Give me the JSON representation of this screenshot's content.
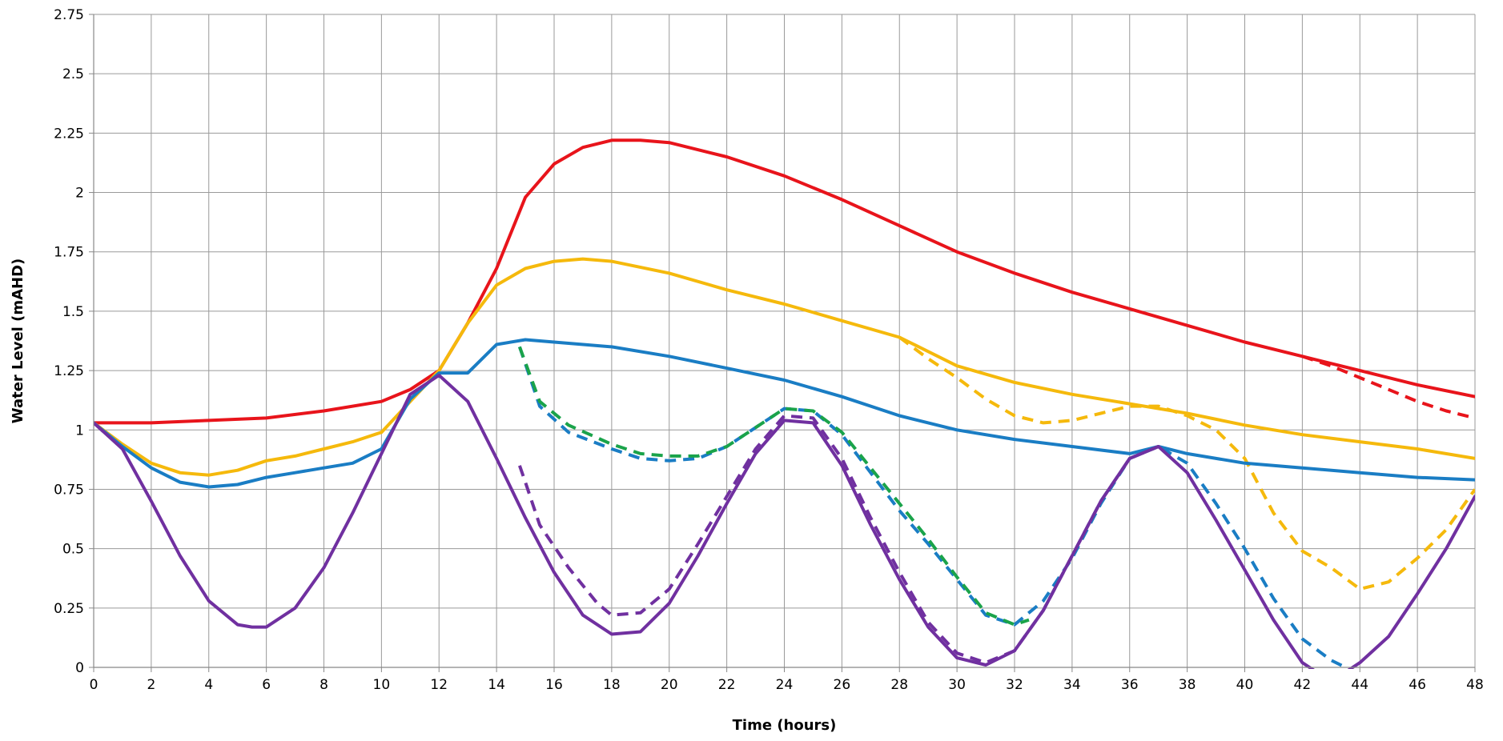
{
  "chart_data": {
    "type": "line",
    "title": "",
    "xlabel": "Time (hours)",
    "ylabel": "Water Level (mAHD)",
    "xlim": [
      0,
      48
    ],
    "ylim": [
      0,
      2.75
    ],
    "xticks": [
      0,
      2,
      4,
      6,
      8,
      10,
      12,
      14,
      16,
      18,
      20,
      22,
      24,
      26,
      28,
      30,
      32,
      34,
      36,
      38,
      40,
      42,
      44,
      46,
      48
    ],
    "xtick_labels": [
      "0",
      "2",
      "4",
      "6",
      "8",
      "10",
      "12",
      "14",
      "16",
      "18",
      "20",
      "22",
      "24",
      "26",
      "28",
      "30",
      "32",
      "34",
      "36",
      "38",
      "40",
      "42",
      "44",
      "46",
      "48"
    ],
    "yticks": [
      0,
      0.25,
      0.5,
      0.75,
      1,
      1.25,
      1.5,
      1.75,
      2,
      2.25,
      2.5,
      2.75
    ],
    "ytick_labels": [
      "0",
      "0.25",
      "0.5",
      "0.75",
      "1",
      "1.25",
      "1.5",
      "1.75",
      "2",
      "2.25",
      "2.5",
      "2.75"
    ],
    "grid": true,
    "legend": "none",
    "series": [
      {
        "color": "#e8141b",
        "dash": "solid",
        "x": [
          0,
          2,
          4,
          6,
          8,
          10,
          11,
          12,
          13,
          14,
          15,
          16,
          17,
          18,
          19,
          20,
          22,
          24,
          26,
          28,
          30,
          32,
          34,
          36,
          38,
          40,
          42,
          44,
          46,
          48
        ],
        "y": [
          1.03,
          1.03,
          1.04,
          1.05,
          1.08,
          1.12,
          1.17,
          1.25,
          1.45,
          1.68,
          1.98,
          2.12,
          2.19,
          2.22,
          2.22,
          2.21,
          2.15,
          2.07,
          1.97,
          1.86,
          1.75,
          1.66,
          1.58,
          1.51,
          1.44,
          1.37,
          1.31,
          1.25,
          1.19,
          1.14
        ]
      },
      {
        "color": "#e8141b",
        "dash": "dashed",
        "x": [
          42,
          43,
          44,
          45,
          46,
          47,
          48
        ],
        "y": [
          1.31,
          1.27,
          1.22,
          1.17,
          1.12,
          1.08,
          1.05
        ]
      },
      {
        "color": "#f5b90c",
        "dash": "solid",
        "x": [
          0,
          1,
          2,
          3,
          4,
          5,
          6,
          7,
          8,
          9,
          10,
          11,
          12,
          13,
          14,
          15,
          16,
          17,
          18,
          20,
          22,
          24,
          26,
          28,
          30,
          32,
          34,
          36,
          38,
          40,
          42,
          44,
          46,
          48
        ],
        "y": [
          1.03,
          0.94,
          0.86,
          0.82,
          0.81,
          0.83,
          0.87,
          0.89,
          0.92,
          0.95,
          0.99,
          1.12,
          1.25,
          1.45,
          1.61,
          1.68,
          1.71,
          1.72,
          1.71,
          1.66,
          1.59,
          1.53,
          1.46,
          1.39,
          1.27,
          1.2,
          1.15,
          1.11,
          1.07,
          1.02,
          0.98,
          0.95,
          0.92,
          0.88
        ]
      },
      {
        "color": "#f5b90c",
        "dash": "dashed",
        "x": [
          28,
          29,
          30,
          31,
          32,
          33,
          34,
          35,
          36,
          37,
          38,
          39,
          40,
          41,
          42,
          43,
          44,
          45,
          46,
          47,
          48
        ],
        "y": [
          1.39,
          1.3,
          1.22,
          1.13,
          1.06,
          1.03,
          1.04,
          1.07,
          1.1,
          1.1,
          1.06,
          1.0,
          0.88,
          0.65,
          0.49,
          0.42,
          0.33,
          0.36,
          0.46,
          0.58,
          0.75
        ]
      },
      {
        "color": "#1a7dc4",
        "dash": "solid",
        "x": [
          0,
          1,
          2,
          3,
          4,
          5,
          6,
          7,
          8,
          9,
          10,
          11,
          12,
          13,
          14,
          15,
          16,
          18,
          20,
          22,
          24,
          26,
          28,
          30,
          32,
          34,
          36,
          37,
          38,
          40,
          42,
          44,
          46,
          48
        ],
        "y": [
          1.03,
          0.93,
          0.84,
          0.78,
          0.76,
          0.77,
          0.8,
          0.82,
          0.84,
          0.86,
          0.92,
          1.13,
          1.24,
          1.24,
          1.36,
          1.38,
          1.37,
          1.35,
          1.31,
          1.26,
          1.21,
          1.14,
          1.06,
          1.0,
          0.96,
          0.93,
          0.9,
          0.93,
          0.9,
          0.86,
          0.84,
          0.82,
          0.8,
          0.79
        ]
      },
      {
        "color": "#1a7dc4",
        "dash": "dashed",
        "x": [
          14.8,
          15.5,
          16.5,
          18,
          19,
          20,
          21,
          22,
          23,
          24,
          25,
          26,
          27,
          28,
          29,
          30,
          31,
          32,
          33,
          34,
          35,
          36,
          37,
          38,
          39,
          40,
          41,
          42,
          43,
          43.5
        ],
        "y": [
          1.35,
          1.1,
          0.99,
          0.92,
          0.88,
          0.87,
          0.88,
          0.93,
          1.01,
          1.09,
          1.08,
          0.98,
          0.82,
          0.66,
          0.52,
          0.37,
          0.22,
          0.18,
          0.28,
          0.46,
          0.69,
          0.88,
          0.93,
          0.86,
          0.69,
          0.5,
          0.29,
          0.12,
          0.03,
          0
        ]
      },
      {
        "color": "#1aa34a",
        "dash": "dashed",
        "x": [
          14.8,
          15.5,
          16.5,
          18,
          19,
          20,
          21,
          22,
          23,
          24,
          25,
          26,
          27,
          28,
          29,
          30,
          31,
          32,
          32.5
        ],
        "y": [
          1.35,
          1.12,
          1.02,
          0.94,
          0.9,
          0.89,
          0.89,
          0.93,
          1.01,
          1.09,
          1.08,
          0.99,
          0.84,
          0.69,
          0.54,
          0.38,
          0.23,
          0.18,
          0.2
        ]
      },
      {
        "color": "#7030a0",
        "dash": "solid",
        "x": [
          0,
          1,
          2,
          3,
          4,
          5,
          5.5,
          6,
          7,
          8,
          9,
          10,
          11,
          12,
          13,
          14,
          15,
          16,
          17,
          18,
          19,
          20,
          21,
          22,
          23,
          24,
          25,
          26,
          27,
          28,
          29,
          30,
          31,
          32,
          33,
          34,
          35,
          36,
          37,
          38,
          39,
          40,
          41,
          42,
          43,
          44,
          45,
          46,
          47,
          48
        ],
        "y": [
          1.03,
          0.92,
          0.7,
          0.47,
          0.28,
          0.18,
          0.17,
          0.17,
          0.25,
          0.42,
          0.65,
          0.9,
          1.15,
          1.23,
          1.12,
          0.88,
          0.63,
          0.4,
          0.22,
          0.14,
          0.15,
          0.27,
          0.47,
          0.69,
          0.9,
          1.04,
          1.03,
          0.85,
          0.6,
          0.37,
          0.17,
          0.04,
          0.01,
          0.07,
          0.24,
          0.47,
          0.7,
          0.88,
          0.93,
          0.82,
          0.62,
          0.41,
          0.2,
          0.02,
          -0.06,
          0.02,
          0.13,
          0.31,
          0.5,
          0.72
        ]
      },
      {
        "color": "#7030a0",
        "dash": "dashed",
        "x": [
          14.8,
          15,
          15.5,
          16.5,
          17.5,
          18,
          19,
          20,
          21,
          22,
          23,
          24,
          25,
          26,
          27,
          28,
          29,
          30,
          31,
          32,
          33,
          34,
          35,
          36,
          37
        ],
        "y": [
          0.85,
          0.78,
          0.6,
          0.42,
          0.27,
          0.22,
          0.23,
          0.33,
          0.52,
          0.72,
          0.92,
          1.06,
          1.05,
          0.88,
          0.63,
          0.4,
          0.19,
          0.06,
          0.02,
          0.07,
          0.24,
          0.47,
          0.7,
          0.88,
          0.93
        ]
      }
    ]
  }
}
